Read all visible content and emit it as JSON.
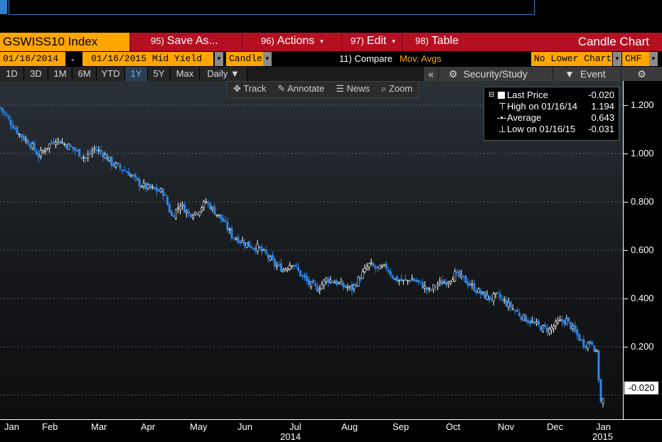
{
  "header": {
    "ticker": "GSWISS10 Index",
    "menu": [
      {
        "num": "95)",
        "label": "Save As...",
        "arrow": "▾"
      },
      {
        "num": "96)",
        "label": "Actions",
        "arrow": "▾"
      },
      {
        "num": "97)",
        "label": "Edit",
        "arrow": "▾"
      },
      {
        "num": "98)",
        "label": "Table",
        "arrow": ""
      }
    ],
    "chart_title": "Candle Chart"
  },
  "fields": {
    "start_date": "01/16/2014",
    "dash": "-",
    "end_date_field": "01/16/2015 Mid Yield",
    "chart_type": "Candle",
    "compare_num": "11)",
    "compare_label": "Compare",
    "mov_avgs": "Mov. Avgs",
    "lower_chart": "No Lower Chart",
    "currency": "CHF"
  },
  "periods": [
    {
      "label": "1D",
      "active": false
    },
    {
      "label": "3D",
      "active": false
    },
    {
      "label": "1M",
      "active": false
    },
    {
      "label": "6M",
      "active": false
    },
    {
      "label": "YTD",
      "active": false
    },
    {
      "label": "1Y",
      "active": true
    },
    {
      "label": "5Y",
      "active": false
    },
    {
      "label": "Max",
      "active": false
    },
    {
      "label": "Daily ▼",
      "active": false
    }
  ],
  "right_toolbar": {
    "collapse": "«",
    "security_study": "Security/Study",
    "event": "Event",
    "settings_icon": "gear-icon"
  },
  "chart_tools": {
    "track": "Track",
    "annotate": "Annotate",
    "news": "News",
    "zoom": "Zoom"
  },
  "legend": {
    "last_price_label": "Last Price",
    "last_price_value": "-0.020",
    "high_label": "High on 01/16/14",
    "high_value": "1.194",
    "average_label": "Average",
    "average_value": "0.643",
    "low_label": "Low on 01/16/15",
    "low_value": "-0.031"
  },
  "last_price_tag": "-0.020",
  "colors": {
    "up": "#ffffff",
    "down": "#2f86e8",
    "menu_red": "#b50f22",
    "field_orange": "#ffa500"
  },
  "chart_data": {
    "type": "candlestick",
    "ylim": [
      -0.1,
      1.3
    ],
    "yticks": [
      1.2,
      1.0,
      0.8,
      0.6,
      0.4,
      0.2
    ],
    "ytick_labels": [
      "1.200",
      "1.000",
      "0.800",
      "0.600",
      "0.400",
      "0.200"
    ],
    "xticks": [
      "Jan",
      "Feb",
      "Mar",
      "Apr",
      "May",
      "Jun",
      "Jul",
      "Aug",
      "Sep",
      "Oct",
      "Nov",
      "Dec",
      "Jan"
    ],
    "year_labels": [
      "2014",
      "2015"
    ],
    "grid": true,
    "close_path": [
      [
        0,
        1.19
      ],
      [
        4,
        1.14
      ],
      [
        9,
        1.08
      ],
      [
        14,
        1.04
      ],
      [
        18,
        0.99
      ],
      [
        22,
        1.03
      ],
      [
        26,
        1.06
      ],
      [
        30,
        1.04
      ],
      [
        34,
        1.02
      ],
      [
        40,
        0.98
      ],
      [
        44,
        1.02
      ],
      [
        48,
        1.0
      ],
      [
        52,
        0.96
      ],
      [
        56,
        0.94
      ],
      [
        60,
        0.92
      ],
      [
        64,
        0.88
      ],
      [
        68,
        0.86
      ],
      [
        72,
        0.85
      ],
      [
        76,
        0.84
      ],
      [
        80,
        0.74
      ],
      [
        84,
        0.79
      ],
      [
        88,
        0.75
      ],
      [
        92,
        0.76
      ],
      [
        96,
        0.8
      ],
      [
        100,
        0.76
      ],
      [
        104,
        0.72
      ],
      [
        108,
        0.66
      ],
      [
        112,
        0.64
      ],
      [
        116,
        0.62
      ],
      [
        120,
        0.61
      ],
      [
        124,
        0.58
      ],
      [
        128,
        0.54
      ],
      [
        132,
        0.52
      ],
      [
        136,
        0.55
      ],
      [
        140,
        0.5
      ],
      [
        144,
        0.46
      ],
      [
        148,
        0.44
      ],
      [
        152,
        0.48
      ],
      [
        156,
        0.47
      ],
      [
        160,
        0.45
      ],
      [
        164,
        0.44
      ],
      [
        168,
        0.49
      ],
      [
        172,
        0.54
      ],
      [
        176,
        0.52
      ],
      [
        180,
        0.53
      ],
      [
        184,
        0.48
      ],
      [
        188,
        0.47
      ],
      [
        192,
        0.48
      ],
      [
        196,
        0.46
      ],
      [
        200,
        0.43
      ],
      [
        204,
        0.46
      ],
      [
        208,
        0.47
      ],
      [
        212,
        0.5
      ],
      [
        216,
        0.48
      ],
      [
        220,
        0.45
      ],
      [
        224,
        0.42
      ],
      [
        228,
        0.4
      ],
      [
        232,
        0.41
      ],
      [
        236,
        0.38
      ],
      [
        240,
        0.35
      ],
      [
        244,
        0.32
      ],
      [
        248,
        0.3
      ],
      [
        252,
        0.28
      ],
      [
        256,
        0.27
      ],
      [
        260,
        0.3
      ],
      [
        264,
        0.31
      ],
      [
        268,
        0.26
      ],
      [
        272,
        0.21
      ],
      [
        276,
        0.22
      ],
      [
        278,
        0.17
      ],
      [
        280,
        -0.03
      ],
      [
        281,
        -0.02
      ]
    ]
  }
}
